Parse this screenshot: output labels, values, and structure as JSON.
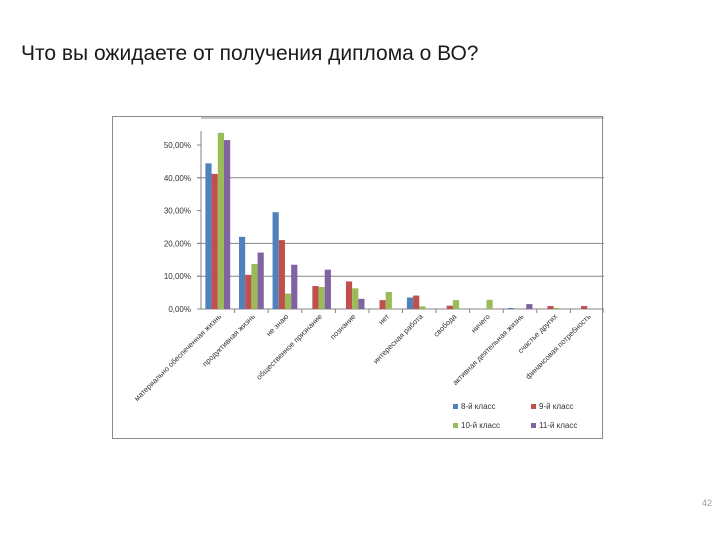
{
  "slide": {
    "title": "Что вы ожидаете от получения диплома о ВО?",
    "page_number": "42"
  },
  "chart_data": {
    "type": "bar",
    "title": "",
    "xlabel": "",
    "ylabel": "",
    "ylim": [
      0,
      0.5
    ],
    "y_ticks": [
      "0,00%",
      "10,00%",
      "20,00%",
      "30,00%",
      "40,00%",
      "50,00%"
    ],
    "gridlines_at": [
      0.1,
      0.2,
      0.4
    ],
    "grid": true,
    "legend_position": "bottom-right",
    "categories": [
      "материально обеспеченная жизнь",
      "продуктивная жизнь",
      "не знаю",
      "общественное признание",
      "познание",
      "нет",
      "интересная работа",
      "свобода",
      "ничего",
      "активная деятельная жизнь",
      "счастье других",
      "финансовая потребность"
    ],
    "series": [
      {
        "name": "8-й класс",
        "color": "#4f81bd",
        "values": [
          0.444,
          0.22,
          0.295,
          0.0,
          0.0,
          0.0,
          0.035,
          0.0,
          0.0,
          0.003,
          0.0,
          0.0
        ]
      },
      {
        "name": "9-й класс",
        "color": "#c0504d",
        "values": [
          0.412,
          0.104,
          0.21,
          0.07,
          0.084,
          0.027,
          0.041,
          0.01,
          0.0,
          0.0,
          0.009,
          0.009
        ]
      },
      {
        "name": "10-й класс",
        "color": "#9bbb59",
        "values": [
          0.537,
          0.137,
          0.047,
          0.067,
          0.063,
          0.052,
          0.008,
          0.027,
          0.028,
          0.0,
          0.003,
          0.0
        ]
      },
      {
        "name": "11-й класс",
        "color": "#8064a2",
        "values": [
          0.515,
          0.172,
          0.135,
          0.12,
          0.031,
          0.0,
          0.0,
          0.0,
          0.0,
          0.015,
          0.0,
          0.0
        ]
      }
    ]
  }
}
